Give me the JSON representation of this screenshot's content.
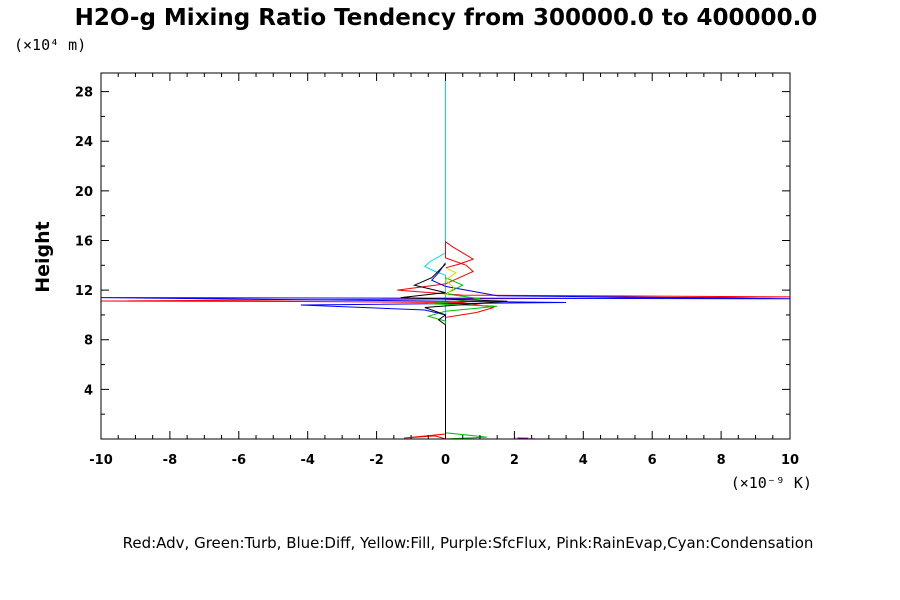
{
  "chart_data": {
    "type": "line",
    "title": "H2O-g Mixing Ratio Tendency from 300000.0 to 400000.0",
    "ylabel": "Height",
    "y_multiplier": "(×10⁴ m)",
    "x_multiplier": "(×10⁻⁹ K)",
    "xlim": [
      -10,
      10
    ],
    "ylim": [
      0,
      29.5
    ],
    "xticks": [
      -10,
      -8,
      -6,
      -4,
      -2,
      0,
      2,
      4,
      6,
      8,
      10
    ],
    "xtick_labels": [
      "-10",
      "-8",
      "-6",
      "-4",
      "-2",
      "0",
      "2",
      "4",
      "6",
      "8",
      "10"
    ],
    "yticks": [
      4,
      8,
      12,
      16,
      20,
      24,
      28
    ],
    "ytick_labels": [
      "4",
      "8",
      "12",
      "16",
      "20",
      "24",
      "28"
    ],
    "grid": false,
    "legend_text": "Red:Adv, Green:Turb, Blue:Diff, Yellow:Fill, Purple:SfcFlux, Pink:RainEvap,Cyan:Condensation",
    "series": [
      {
        "color": "#00e0e0",
        "points": [
          [
            0,
            0
          ],
          [
            0,
            13.2
          ],
          [
            -0.3,
            13.5
          ],
          [
            -0.6,
            13.9
          ],
          [
            -0.45,
            14.3
          ],
          [
            0,
            15
          ],
          [
            0,
            29.5
          ]
        ]
      },
      {
        "color": "#ff0000",
        "points": [
          [
            0,
            0
          ],
          [
            -0.3,
            0.25
          ],
          [
            -1.2,
            0.08
          ],
          [
            0,
            0.4
          ],
          [
            0,
            9.8
          ],
          [
            0.9,
            10.2
          ],
          [
            1.4,
            10.6
          ],
          [
            0.5,
            11
          ],
          [
            -4.2,
            11.08
          ],
          [
            -10,
            11.12
          ],
          [
            10,
            11.45
          ],
          [
            0.5,
            11.6
          ],
          [
            -1.4,
            12
          ],
          [
            0,
            12.5
          ],
          [
            0.4,
            13
          ],
          [
            0.8,
            13.5
          ],
          [
            0.6,
            14
          ],
          [
            0,
            14.6
          ],
          [
            0,
            15.9
          ],
          [
            0.2,
            15.5
          ],
          [
            0.8,
            14.5
          ],
          [
            0.4,
            14.1
          ],
          [
            0,
            13.8
          ]
        ]
      },
      {
        "color": "#0000ff",
        "points": [
          [
            0,
            0
          ],
          [
            0,
            10
          ],
          [
            -0.6,
            10.4
          ],
          [
            -4.2,
            10.8
          ],
          [
            3.5,
            11
          ],
          [
            -10,
            11.4
          ],
          [
            10,
            11.3
          ],
          [
            1.5,
            11.55
          ],
          [
            0.8,
            11.9
          ],
          [
            0,
            12.3
          ],
          [
            -0.4,
            12.8
          ],
          [
            -0.2,
            13.4
          ],
          [
            0,
            14.2
          ]
        ]
      },
      {
        "color": "#00c000",
        "points": [
          [
            0,
            0
          ],
          [
            1.2,
            0.15
          ],
          [
            0,
            0.5
          ],
          [
            0,
            9.5
          ],
          [
            -0.5,
            9.9
          ],
          [
            0,
            10.3
          ],
          [
            1.5,
            10.7
          ],
          [
            -0.5,
            10.9
          ],
          [
            1,
            11.3
          ],
          [
            0,
            11.7
          ],
          [
            0.5,
            12.4
          ],
          [
            0,
            13
          ]
        ]
      },
      {
        "color": "#000000",
        "points": [
          [
            0,
            0.5
          ],
          [
            0,
            9.2
          ],
          [
            -0.2,
            9.6
          ],
          [
            0,
            10
          ],
          [
            -0.6,
            10.6
          ],
          [
            1.8,
            11.1
          ],
          [
            -1.3,
            11.4
          ],
          [
            0,
            11.8
          ],
          [
            -0.9,
            12.4
          ],
          [
            -0.4,
            13
          ],
          [
            0,
            14.1
          ]
        ]
      },
      {
        "color": "#d8d800",
        "points": [
          [
            0,
            11.6
          ],
          [
            0.25,
            12.2
          ],
          [
            0,
            12.8
          ],
          [
            0.3,
            13.4
          ],
          [
            0,
            13.8
          ]
        ]
      },
      {
        "color": "#ff99ff",
        "points": [
          [
            2,
            0.1
          ],
          [
            2.6,
            0.05
          ]
        ]
      },
      {
        "color": "#8000a0",
        "points": [
          [
            2.1,
            0.08
          ],
          [
            2.4,
            0.06
          ]
        ]
      }
    ]
  }
}
